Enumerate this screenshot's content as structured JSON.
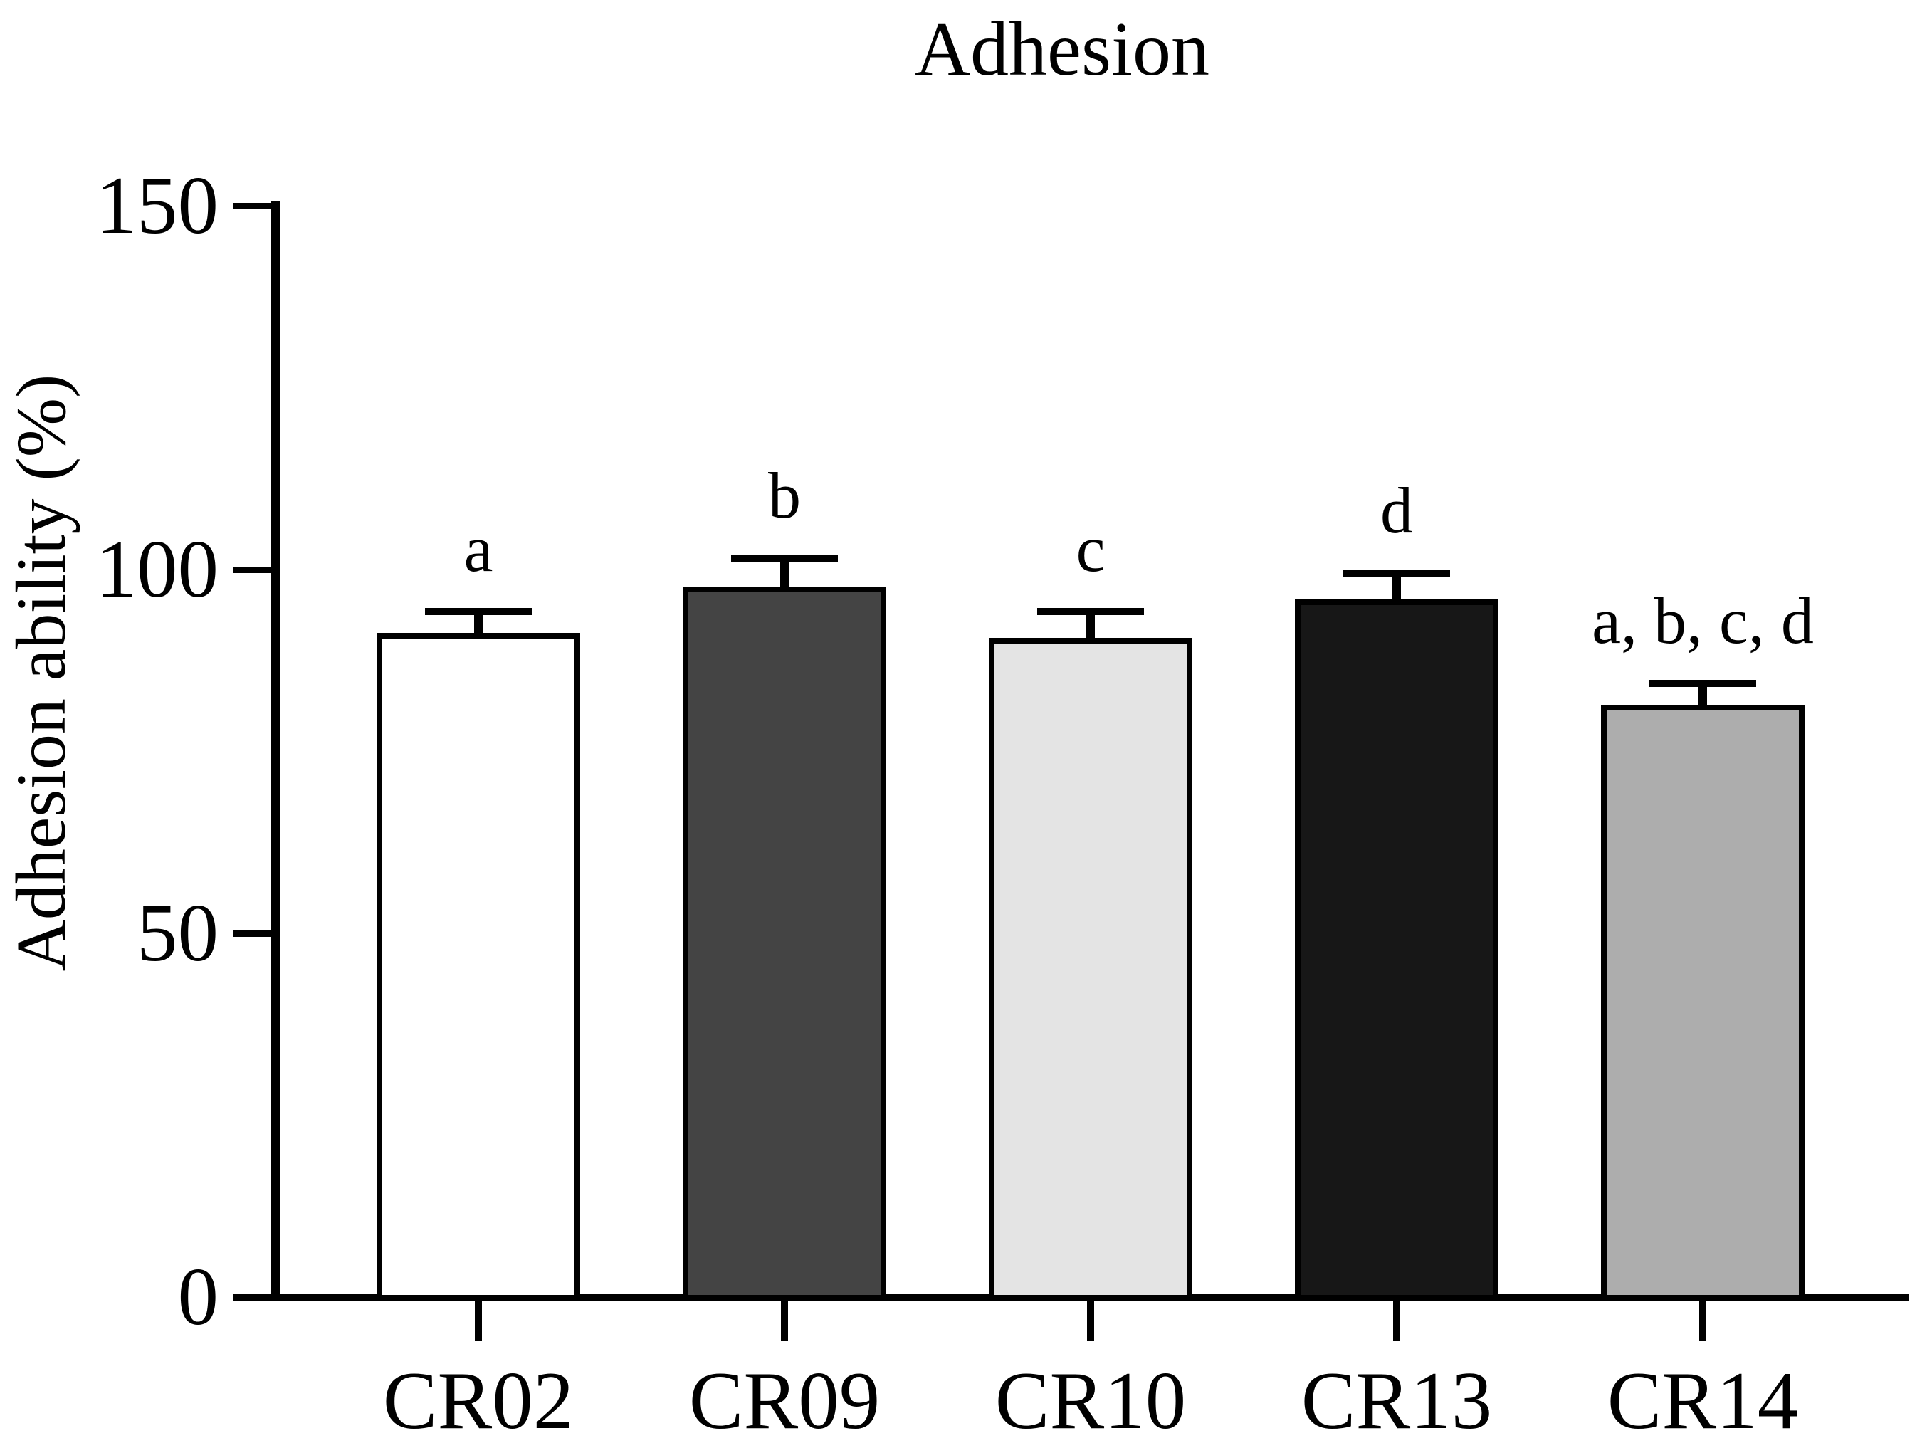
{
  "chart_data": {
    "type": "bar",
    "title": "Adhesion",
    "ylabel": "Adhesion ability (%)",
    "xlabel": "",
    "categories": [
      "CR02",
      "CR09",
      "CR10",
      "CR13",
      "CR14"
    ],
    "values": [
      91.3,
      97.7,
      90.6,
      95.9,
      81.4
    ],
    "errors_upper": [
      2.9,
      3.9,
      3.6,
      3.6,
      2.9
    ],
    "significance_labels": [
      "a",
      "b",
      "c",
      "d",
      "a, b, c, d"
    ],
    "bar_fill_colors": [
      "#ffffff",
      "#444444",
      "#e4e4e4",
      "#171717",
      "#adadad"
    ],
    "bar_edge_color": "#000000",
    "error_bar_color": "#000000",
    "axis_color": "#000000",
    "text_color": "#000000",
    "background_color": "#ffffff",
    "yticks": [
      0,
      50,
      100,
      150
    ],
    "ylim": [
      0,
      150
    ],
    "grid": false,
    "legend": false,
    "error_bar_style": "upper only, vertical stem with horizontal cap"
  }
}
